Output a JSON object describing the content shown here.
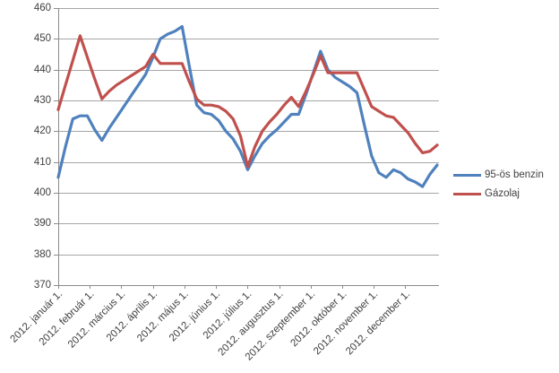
{
  "chart_data": {
    "type": "line",
    "title": "",
    "xlabel": "",
    "ylabel": "",
    "grid": "horizontal-only",
    "legend_position": "right",
    "x_tick_labels": [
      "2012. január 1.",
      "2012. február 1.",
      "2012. március 1.",
      "2012. április 1.",
      "2012. május 1.",
      "2012. június 1.",
      "2012. július 1.",
      "2012. augusztus 1.",
      "2012. szeptember 1.",
      "2012. október 1.",
      "2012. november 1.",
      "2012. december 1."
    ],
    "y_ticks": [
      370,
      380,
      390,
      400,
      410,
      420,
      430,
      440,
      450,
      460
    ],
    "ylim": [
      370,
      460
    ],
    "series": [
      {
        "name": "95-ös benzin",
        "color": "#4F81BD",
        "cadence": "weekly",
        "values": [
          405,
          415,
          424,
          425,
          425,
          420.5,
          417,
          421,
          424.5,
          428,
          431.5,
          435,
          438.5,
          444,
          450,
          451.5,
          452.5,
          454,
          441,
          428.5,
          426,
          425.5,
          423.5,
          420,
          417.5,
          413.5,
          407.5,
          412,
          416,
          418.5,
          420.5,
          423,
          425.5,
          425.5,
          432,
          439,
          446,
          440,
          437.5,
          436,
          434.5,
          432.5,
          422,
          412,
          406.5,
          405,
          407.5,
          406.5,
          404.5,
          403.5,
          402,
          406,
          409
        ]
      },
      {
        "name": "Gázolaj",
        "color": "#C0504D",
        "cadence": "weekly",
        "values": [
          427,
          435,
          443,
          451,
          444,
          437,
          430.5,
          433,
          435,
          436.5,
          438,
          439.5,
          441,
          445,
          442,
          442,
          442,
          442,
          436,
          430.5,
          428.5,
          428.5,
          428,
          426.5,
          424,
          418.5,
          408.5,
          415,
          420,
          423,
          425.5,
          428.5,
          431,
          428,
          433,
          438.5,
          444.5,
          439,
          439,
          439,
          439,
          439,
          433.5,
          428,
          426.5,
          425,
          424.5,
          422,
          419.5,
          416,
          413,
          413.5,
          415.5
        ]
      }
    ]
  },
  "colors": {
    "series_benzin": "#4F81BD",
    "series_gazolaj": "#C0504D",
    "gridline": "#A6A6A6",
    "axis": "#8C8C8C",
    "tick_text": "#404040",
    "background": "#FFFFFF"
  }
}
